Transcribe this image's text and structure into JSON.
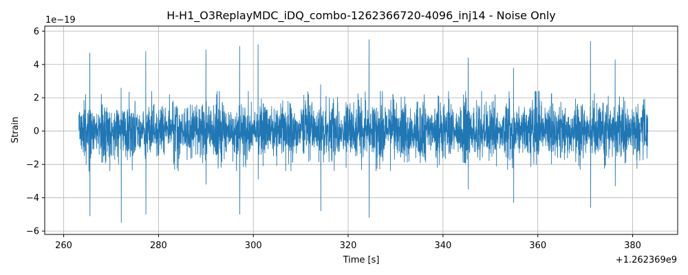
{
  "chart_data": {
    "type": "line",
    "title": "H-H1_O3ReplayMDC_iDQ_combo-1262366720-4096_inj14 - Noise Only",
    "xlabel": "Time [s]",
    "ylabel": "Strain",
    "x_offset_label": "+1.262369e9",
    "y_scale_label": "1e−19",
    "xlim": [
      256.0,
      389.5
    ],
    "ylim": [
      -6.2,
      6.3
    ],
    "x_ticks": [
      260,
      280,
      300,
      320,
      340,
      360,
      380
    ],
    "x_tick_labels": [
      "260",
      "280",
      "300",
      "320",
      "340",
      "360",
      "380"
    ],
    "y_ticks": [
      -6,
      -4,
      -2,
      0,
      2,
      4,
      6
    ],
    "y_tick_labels": [
      "−6",
      "−4",
      "−2",
      "0",
      "2",
      "4",
      "6"
    ],
    "grid": true,
    "line_color": "#1f77b4",
    "series": [
      {
        "x_range": [
          263.2,
          383.2
        ],
        "typical_amplitude": 1.6,
        "envelope_spikes": [
          {
            "x": 265.5,
            "max": 4.7,
            "min": -5.1
          },
          {
            "x": 272.1,
            "max": 2.6,
            "min": -5.5
          },
          {
            "x": 277.3,
            "max": 4.8,
            "min": -5.0
          },
          {
            "x": 290.0,
            "max": 4.9,
            "min": -3.2
          },
          {
            "x": 297.1,
            "max": 5.1,
            "min": -5.0
          },
          {
            "x": 301.0,
            "max": 5.2,
            "min": -2.9
          },
          {
            "x": 314.2,
            "max": 2.8,
            "min": -4.8
          },
          {
            "x": 324.4,
            "max": 5.5,
            "min": -5.2
          },
          {
            "x": 345.3,
            "max": 4.4,
            "min": -3.5
          },
          {
            "x": 354.9,
            "max": 3.8,
            "min": -4.3
          },
          {
            "x": 371.1,
            "max": 5.4,
            "min": -4.6
          },
          {
            "x": 376.3,
            "max": 4.3,
            "min": -3.3
          }
        ]
      }
    ]
  }
}
